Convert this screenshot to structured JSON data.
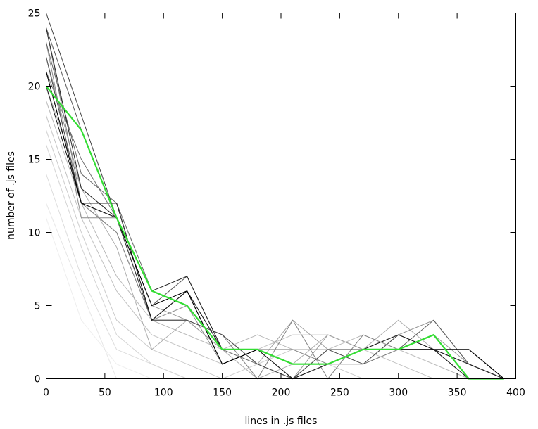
{
  "chart_data": {
    "type": "line",
    "title": "",
    "xlabel": "lines in .js files",
    "ylabel": "number of .js files",
    "xlim": [
      0,
      400
    ],
    "ylim": [
      0,
      25
    ],
    "x_ticks": [
      "0",
      "50",
      "100",
      "150",
      "200",
      "250",
      "300",
      "350",
      "400"
    ],
    "y_ticks": [
      "0",
      "5",
      "10",
      "15",
      "20",
      "25"
    ],
    "grid": false,
    "legend": "none",
    "x": [
      0,
      30,
      60,
      90,
      120,
      150,
      180,
      210,
      240,
      270,
      300,
      330,
      360,
      390
    ],
    "series": [
      {
        "color": "#eeeeee",
        "values": [
          11,
          4,
          1,
          0,
          0,
          0,
          0,
          0,
          0,
          0,
          0,
          0,
          0,
          0
        ]
      },
      {
        "color": "#e6e6e6",
        "values": [
          12,
          6,
          0,
          0,
          0,
          0,
          0,
          0,
          0,
          0,
          0,
          0,
          0,
          0
        ]
      },
      {
        "color": "#dddddd",
        "values": [
          14,
          7,
          2,
          1,
          0,
          0,
          0,
          0,
          0,
          0,
          0,
          0,
          0,
          0
        ]
      },
      {
        "color": "#d4d4d4",
        "values": [
          16,
          9,
          3,
          1,
          0,
          0,
          0,
          0,
          0,
          0,
          0,
          0,
          0,
          0
        ]
      },
      {
        "color": "#cccccc",
        "values": [
          17,
          10,
          4,
          2,
          1,
          0,
          1,
          2,
          1,
          0,
          0,
          0,
          0,
          0
        ]
      },
      {
        "color": "#c2c2c2",
        "values": [
          18,
          11,
          6,
          3,
          2,
          1,
          2,
          3,
          3,
          2,
          1,
          0,
          0,
          0
        ]
      },
      {
        "color": "#b8b8b8",
        "values": [
          19,
          12,
          7,
          4,
          3,
          2,
          3,
          2,
          2,
          3,
          2,
          1,
          0,
          0
        ]
      },
      {
        "color": "#adadad",
        "values": [
          20,
          13,
          9,
          2,
          4,
          2,
          0,
          1,
          3,
          2,
          4,
          2,
          0,
          0
        ]
      },
      {
        "color": "#a3a3a3",
        "values": [
          21,
          12,
          10,
          4,
          4,
          3,
          1,
          4,
          2,
          1,
          3,
          2,
          1,
          0
        ]
      },
      {
        "color": "#999999",
        "values": [
          22,
          13,
          11,
          5,
          4,
          2,
          2,
          0,
          3,
          2,
          2,
          3,
          1,
          0
        ]
      },
      {
        "color": "#8c8c8c",
        "values": [
          23,
          11,
          11,
          4,
          5,
          1,
          2,
          2,
          1,
          2,
          3,
          4,
          1,
          0
        ]
      },
      {
        "color": "#808080",
        "values": [
          24,
          12,
          10,
          4,
          4,
          3,
          0,
          4,
          0,
          3,
          2,
          2,
          0,
          0
        ]
      },
      {
        "color": "#737373",
        "values": [
          21,
          15,
          11,
          5,
          6,
          2,
          2,
          1,
          1,
          1,
          2,
          3,
          0,
          0
        ]
      },
      {
        "color": "#666666",
        "values": [
          23,
          14,
          12,
          6,
          5,
          2,
          1,
          0,
          2,
          2,
          3,
          2,
          1,
          0
        ]
      },
      {
        "color": "#595959",
        "values": [
          24,
          17,
          11,
          5,
          7,
          2,
          2,
          1,
          1,
          2,
          2,
          4,
          1,
          0
        ]
      },
      {
        "color": "#4d4d4d",
        "values": [
          22,
          12,
          11,
          4,
          4,
          3,
          1,
          0,
          2,
          1,
          3,
          2,
          2,
          0
        ]
      },
      {
        "color": "#404040",
        "values": [
          25,
          18,
          11,
          4,
          6,
          1,
          2,
          1,
          1,
          2,
          2,
          2,
          0,
          0
        ]
      },
      {
        "color": "#333333",
        "values": [
          21,
          12,
          12,
          4,
          6,
          1,
          2,
          0,
          1,
          2,
          2,
          2,
          2,
          0
        ]
      },
      {
        "color": "#262626",
        "values": [
          24,
          13,
          11,
          6,
          7,
          2,
          2,
          1,
          1,
          2,
          2,
          2,
          0,
          0
        ]
      },
      {
        "color": "#1a1a1a",
        "values": [
          20,
          12,
          12,
          4,
          6,
          2,
          2,
          0,
          1,
          2,
          3,
          2,
          1,
          0
        ]
      },
      {
        "color": "#000000",
        "values": [
          21,
          12,
          11,
          5,
          6,
          1,
          2,
          1,
          1,
          2,
          2,
          2,
          2,
          0
        ]
      },
      {
        "color": "#33dd33",
        "values": [
          20,
          17,
          11,
          6,
          5,
          2,
          2,
          1,
          1,
          2,
          2,
          3,
          0,
          0
        ]
      }
    ]
  }
}
